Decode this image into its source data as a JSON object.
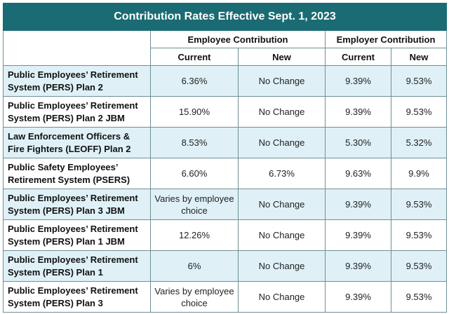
{
  "title": "Contribution Rates Effective Sept. 1, 2023",
  "groups": {
    "employee": "Employee Contribution",
    "employer": "Employer Contribution"
  },
  "subheaders": {
    "employee_current": "Current",
    "employee_new": "New",
    "employer_current": "Current",
    "employer_new": "New"
  },
  "rows": [
    {
      "name": "Public Employees’ Retirement System (PERS) Plan 2",
      "employee_current": "6.36%",
      "employee_new": "No Change",
      "employer_current": "9.39%",
      "employer_new": "9.53%"
    },
    {
      "name": "Public Employees’ Retirement System (PERS) Plan 2 JBM",
      "employee_current": "15.90%",
      "employee_new": "No Change",
      "employer_current": "9.39%",
      "employer_new": "9.53%"
    },
    {
      "name": "Law Enforcement Officers & Fire Fighters (LEOFF) Plan 2",
      "employee_current": "8.53%",
      "employee_new": "No Change",
      "employer_current": "5.30%",
      "employer_new": "5.32%"
    },
    {
      "name": "Public Safety Employees’ Retirement System (PSERS)",
      "employee_current": "6.60%",
      "employee_new": "6.73%",
      "employer_current": "9.63%",
      "employer_new": "9.9%"
    },
    {
      "name": "Public Employees’ Retirement System (PERS) Plan 3 JBM",
      "employee_current": "Varies by employee choice",
      "employee_new": "No Change",
      "employer_current": "9.39%",
      "employer_new": "9.53%"
    },
    {
      "name": "Public Employees’ Retirement System (PERS) Plan 1 JBM",
      "employee_current": "12.26%",
      "employee_new": "No Change",
      "employer_current": "9.39%",
      "employer_new": "9.53%"
    },
    {
      "name": "Public Employees’ Retirement System (PERS) Plan 1",
      "employee_current": "6%",
      "employee_new": "No Change",
      "employer_current": "9.39%",
      "employer_new": "9.53%"
    },
    {
      "name": "Public Employees’ Retirement System (PERS) Plan 3",
      "employee_current": "Varies by employee choice",
      "employee_new": "No Change",
      "employer_current": "9.39%",
      "employer_new": "9.53%"
    }
  ]
}
